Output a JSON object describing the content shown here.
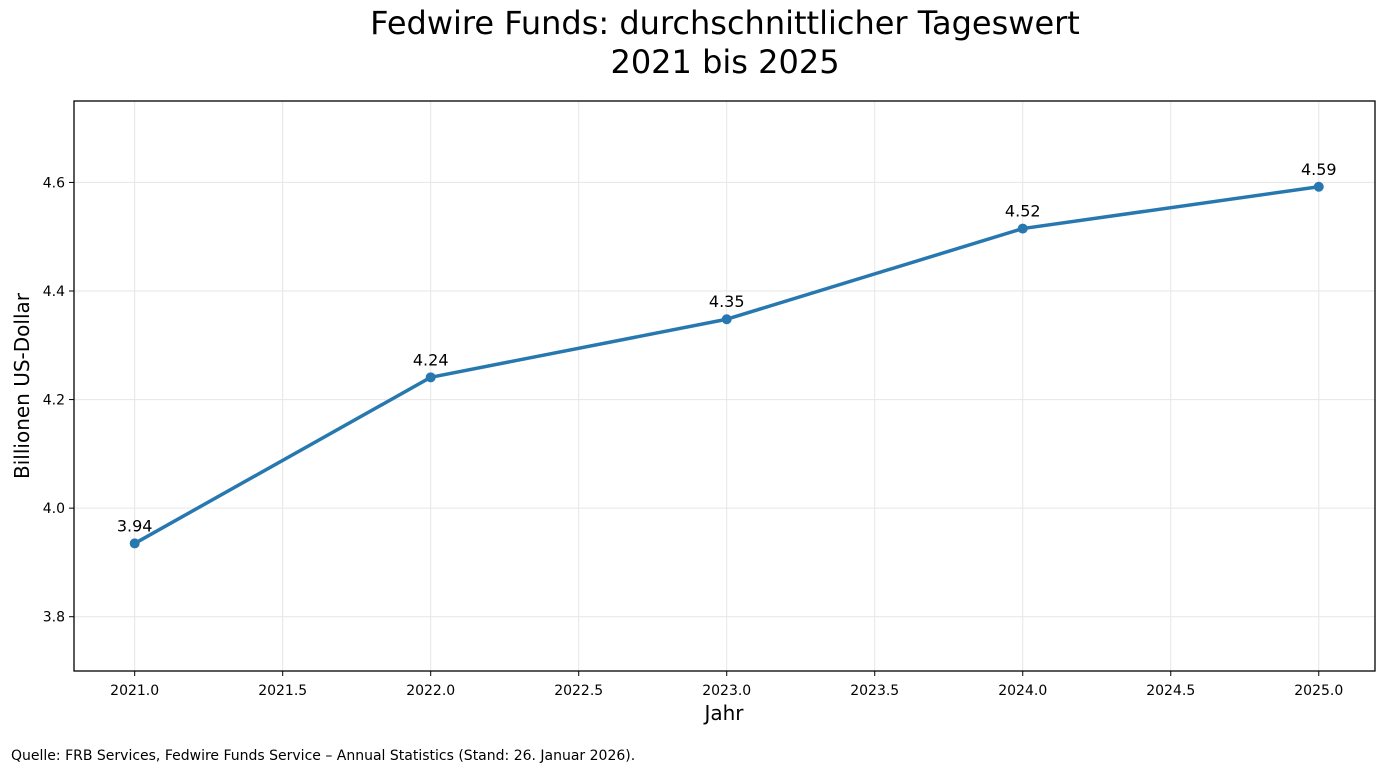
{
  "chart_data": {
    "type": "line",
    "title": "Fedwire Funds: durchschnittlicher Tageswert",
    "subtitle": "2021 bis 2025",
    "xlabel": "Jahr",
    "ylabel": "Billionen US-Dollar",
    "xlim": [
      2020.795,
      2025.19
    ],
    "ylim": [
      3.7,
      4.75
    ],
    "x_ticks": [
      "2021.0",
      "2021.5",
      "2022.0",
      "2022.5",
      "2023.0",
      "2023.5",
      "2024.0",
      "2024.5",
      "2025.0"
    ],
    "y_ticks": [
      "3.8",
      "4.0",
      "4.2",
      "4.4",
      "4.6"
    ],
    "grid": true,
    "series": [
      {
        "x": [
          2021,
          2022,
          2023,
          2024,
          2025
        ],
        "values": [
          3.935,
          4.241,
          4.348,
          4.515,
          4.592
        ],
        "labels": [
          "3.94",
          "4.24",
          "4.35",
          "4.52",
          "4.59"
        ],
        "color": "#2878b0"
      }
    ]
  },
  "source": "Quelle: FRB Services, Fedwire Funds Service – Annual Statistics (Stand: 26. Januar 2026)."
}
